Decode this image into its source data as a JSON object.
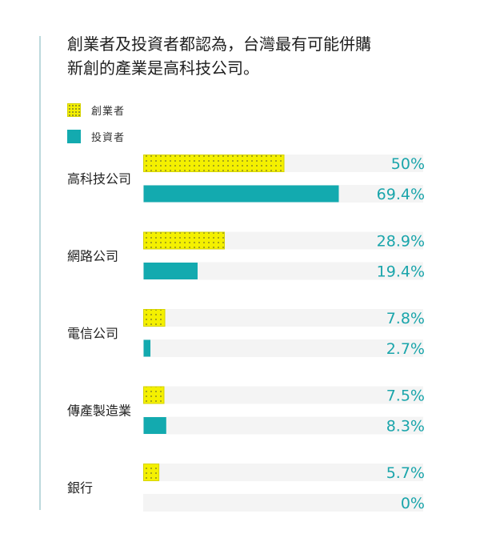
{
  "title_lines": [
    "創業者及投資者都認為，台灣最有可能併購",
    "新創的產業是高科技公司。"
  ],
  "legend": [
    {
      "label": "創業者",
      "color": "#f4f000"
    },
    {
      "label": "投資者",
      "color": "#13aaaf"
    }
  ],
  "colors": {
    "track": "#f4f4f4",
    "founder": "#f4f000",
    "investor": "#13aaaf",
    "value_text": "#1aa5ab"
  },
  "chart_data": {
    "type": "bar",
    "orientation": "horizontal",
    "title": "創業者及投資者都認為，台灣最有可能併購新創的產業是高科技公司。",
    "categories": [
      "高科技公司",
      "網路公司",
      "電信公司",
      "傳產製造業",
      "銀行"
    ],
    "series": [
      {
        "name": "創業者",
        "values": [
          50,
          28.9,
          7.8,
          7.5,
          5.7
        ],
        "labels": [
          "50%",
          "28.9%",
          "7.8%",
          "7.5%",
          "5.7%"
        ]
      },
      {
        "name": "投資者",
        "values": [
          69.4,
          19.4,
          2.7,
          8.3,
          0
        ],
        "labels": [
          "69.4%",
          "19.4%",
          "2.7%",
          "8.3%",
          "0%"
        ]
      }
    ],
    "xlim": [
      0,
      100
    ],
    "grid": false,
    "legend_position": "top-left"
  }
}
